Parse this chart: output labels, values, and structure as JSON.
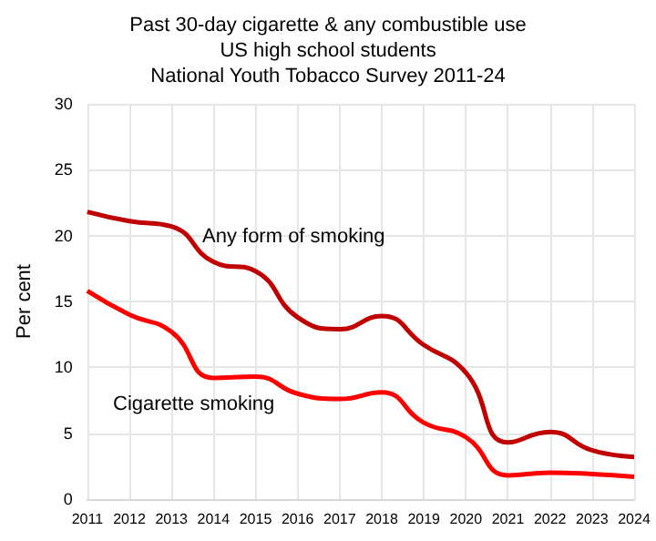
{
  "chart_data": {
    "type": "line",
    "title": "Past 30-day cigarette & any combustible use\nUS high school students\nNational Youth Tobacco Survey 2011-24",
    "ylabel": "Per cent",
    "categories": [
      "2011",
      "2012",
      "2013",
      "2014",
      "2015",
      "2016",
      "2017",
      "2018",
      "2019",
      "2020",
      "2021",
      "2022",
      "2023",
      "2024"
    ],
    "series": [
      {
        "color": "#c00000",
        "values": [
          21.8,
          21.1,
          20.7,
          18.0,
          17.3,
          13.8,
          12.9,
          13.9,
          11.7,
          9.6,
          4.3,
          5.1,
          3.7,
          3.2
        ]
      },
      {
        "color": "#ff0000",
        "values": [
          15.8,
          14.0,
          12.7,
          9.2,
          9.3,
          8.0,
          7.6,
          8.1,
          5.8,
          4.7,
          1.8,
          2.0,
          1.9,
          1.7
        ]
      }
    ],
    "annotations": [
      "Any form of smoking",
      "Cigarette smoking"
    ],
    "ylim": [
      0,
      30
    ],
    "yticks": [
      0,
      5,
      10,
      15,
      20,
      25,
      30
    ],
    "grid": true,
    "marker": "none",
    "line_style": "solid"
  }
}
